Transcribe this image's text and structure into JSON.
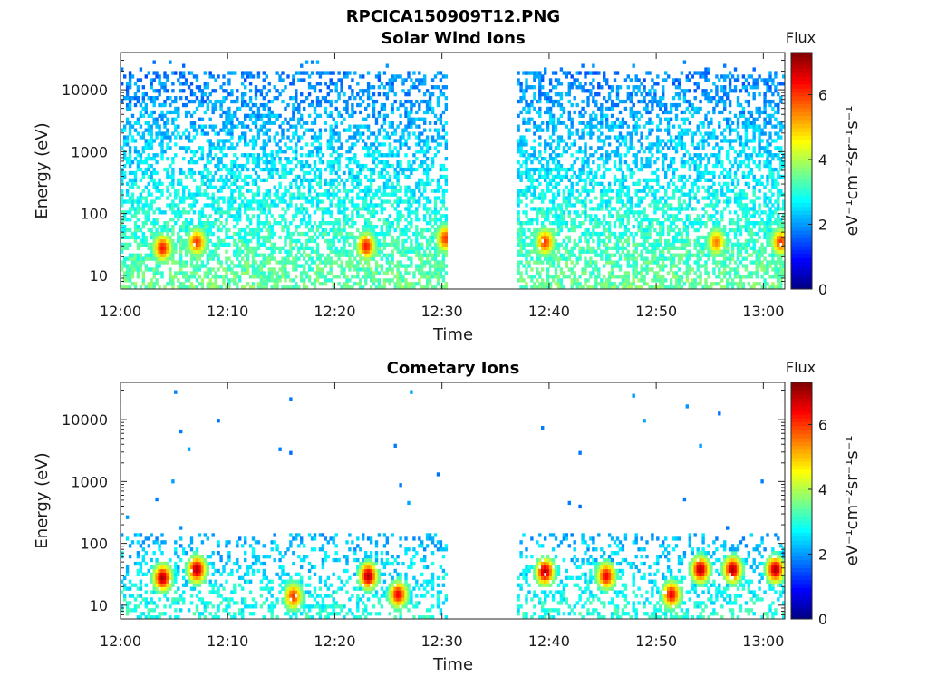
{
  "figure_title": "RPCICA150909T12.PNG",
  "colormap": {
    "name": "jet",
    "stops": [
      "#00007f",
      "#0000ff",
      "#007fff",
      "#00ffff",
      "#7fff7f",
      "#ffff00",
      "#ff7f00",
      "#ff0000",
      "#7f0000"
    ]
  },
  "chart_data": [
    {
      "type": "heatmap",
      "title": "Solar Wind Ions",
      "xlabel": "Time",
      "ylabel": "Energy (eV)",
      "x_ticks": [
        "12:00",
        "12:10",
        "12:20",
        "12:30",
        "12:40",
        "12:50",
        "13:00"
      ],
      "x_tick_minutes": [
        0,
        10,
        20,
        30,
        40,
        50,
        60
      ],
      "xlim_minutes": [
        0,
        62
      ],
      "y_scale": "log",
      "y_ticks": [
        "10",
        "100",
        "1000",
        "10000"
      ],
      "y_tick_values": [
        10,
        100,
        1000,
        10000
      ],
      "ylim": [
        6,
        40000
      ],
      "data_gap_minutes": [
        30.4,
        36.8
      ],
      "colorbar": {
        "title": "Flux",
        "label": "eV⁻¹cm⁻²sr⁻¹s⁻¹",
        "ticks": [
          "0",
          "2",
          "4",
          "6"
        ],
        "tick_values": [
          0,
          2,
          4,
          6
        ],
        "range": [
          0,
          7.3
        ]
      },
      "hotspots": [
        {
          "time_minutes": 3.8,
          "energy_eV": 28,
          "flux": 6.3
        },
        {
          "time_minutes": 7.0,
          "energy_eV": 35,
          "flux": 6.0
        },
        {
          "time_minutes": 22.8,
          "energy_eV": 30,
          "flux": 6.3
        },
        {
          "time_minutes": 30.2,
          "energy_eV": 40,
          "flux": 6.0
        },
        {
          "time_minutes": 39.5,
          "energy_eV": 35,
          "flux": 6.0
        },
        {
          "time_minutes": 55.5,
          "energy_eV": 35,
          "flux": 5.5
        },
        {
          "time_minutes": 61.5,
          "energy_eV": 35,
          "flux": 6.0
        }
      ],
      "background": {
        "energy_min_eV": 6,
        "energy_max_eV": 20000,
        "flux_low_energy": 3.5,
        "flux_high_energy": 1.8
      }
    },
    {
      "type": "heatmap",
      "title": "Cometary Ions",
      "xlabel": "Time",
      "ylabel": "Energy (eV)",
      "x_ticks": [
        "12:00",
        "12:10",
        "12:20",
        "12:30",
        "12:40",
        "12:50",
        "13:00"
      ],
      "x_tick_minutes": [
        0,
        10,
        20,
        30,
        40,
        50,
        60
      ],
      "xlim_minutes": [
        0,
        62
      ],
      "y_scale": "log",
      "y_ticks": [
        "10",
        "100",
        "1000",
        "10000"
      ],
      "y_tick_values": [
        10,
        100,
        1000,
        10000
      ],
      "ylim": [
        6,
        40000
      ],
      "data_gap_minutes": [
        30.4,
        36.8
      ],
      "colorbar": {
        "title": "Flux",
        "label": "eV⁻¹cm⁻²sr⁻¹s⁻¹",
        "ticks": [
          "0",
          "2",
          "4",
          "6"
        ],
        "tick_values": [
          0,
          2,
          4,
          6
        ],
        "range": [
          0,
          7.3
        ]
      },
      "hotspots": [
        {
          "time_minutes": 3.8,
          "energy_eV": 28,
          "flux": 7.0
        },
        {
          "time_minutes": 7.0,
          "energy_eV": 38,
          "flux": 7.0
        },
        {
          "time_minutes": 16.0,
          "energy_eV": 14,
          "flux": 6.0
        },
        {
          "time_minutes": 23.0,
          "energy_eV": 30,
          "flux": 7.0
        },
        {
          "time_minutes": 25.8,
          "energy_eV": 15,
          "flux": 6.5
        },
        {
          "time_minutes": 39.5,
          "energy_eV": 35,
          "flux": 7.0
        },
        {
          "time_minutes": 45.2,
          "energy_eV": 30,
          "flux": 6.5
        },
        {
          "time_minutes": 51.3,
          "energy_eV": 15,
          "flux": 6.5
        },
        {
          "time_minutes": 54.0,
          "energy_eV": 38,
          "flux": 7.0
        },
        {
          "time_minutes": 57.0,
          "energy_eV": 38,
          "flux": 7.0
        },
        {
          "time_minutes": 61.0,
          "energy_eV": 38,
          "flux": 7.0
        }
      ],
      "background": {
        "energy_min_eV": 6,
        "energy_max_eV": 130,
        "flux_low_energy": 3.0,
        "flux_high_energy": 2.2
      }
    }
  ]
}
